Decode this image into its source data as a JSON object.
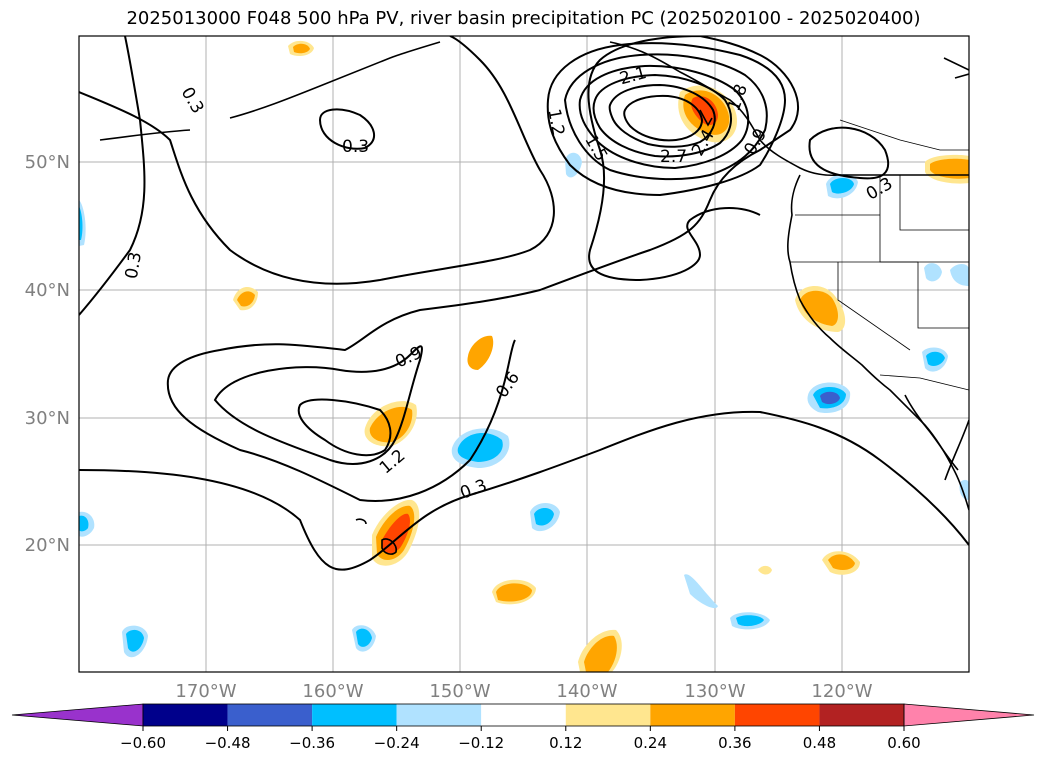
{
  "title": "2025013000 F048 500 hPa PV, river basin precipitation PC (2025020100 - 2025020400)",
  "lat_ticks": [
    "50°N",
    "40°N",
    "30°N",
    "20°N"
  ],
  "lon_ticks": [
    "170°W",
    "160°W",
    "150°W",
    "140°W",
    "130°W",
    "120°W"
  ],
  "contour_labels": [
    "0.3",
    "0.3",
    "0.3",
    "0.3",
    "0.3",
    "0.6",
    "0.9",
    "1.2",
    "1.2",
    "1.5",
    "1.8",
    "2.1",
    "2.4",
    "2.7",
    "0.9"
  ],
  "colorbar": {
    "ticks": [
      "−0.60",
      "−0.48",
      "−0.36",
      "−0.24",
      "−0.12",
      "0.12",
      "0.24",
      "0.36",
      "0.48",
      "0.60"
    ],
    "colors": [
      "#9932cc",
      "#00008b",
      "#3a5fcd",
      "#00bfff",
      "#b0e2ff",
      "#ffffff",
      "#ffe68f",
      "#ffa500",
      "#ff4500",
      "#b22222",
      "#ff82ab"
    ]
  },
  "colors": {
    "pos_light": "#ffe68f",
    "pos_mid": "#ffa500",
    "pos_strong": "#ff4500",
    "neg_light": "#b0e2ff",
    "neg_mid": "#00bfff",
    "neg_strong": "#3a5fcd",
    "grid": "#b0b0b0",
    "tick_label": "#808080"
  }
}
